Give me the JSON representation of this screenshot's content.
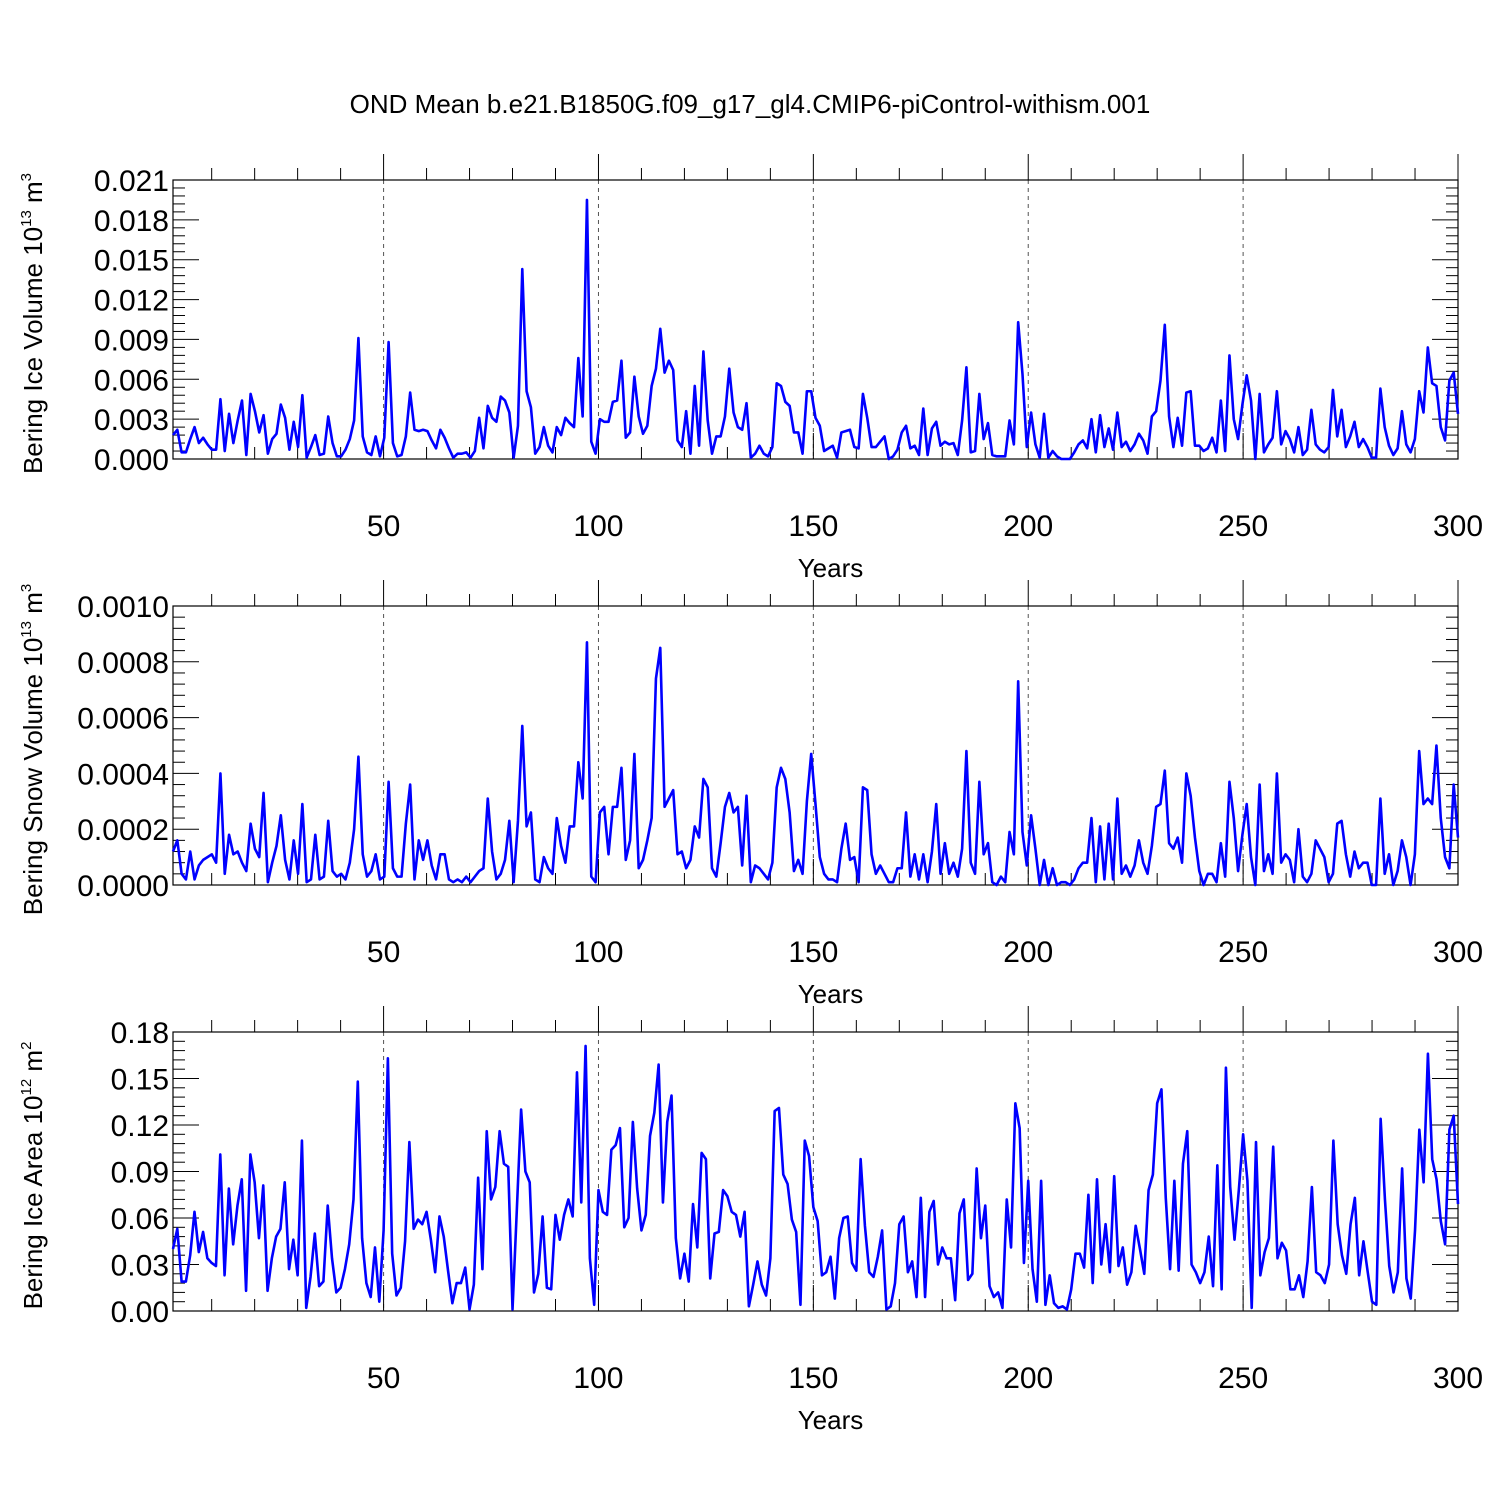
{
  "title": "OND Mean b.e21.B1850G.f09_g17_gl4.CMIP6-piControl-withism.001",
  "series_color": "#0000ff",
  "chart_data": [
    {
      "type": "line",
      "ylabel": {
        "text": "Bering Ice Volume 10",
        "sup": "13",
        "unit": " m",
        "unit_sup": "3"
      },
      "xlabel": "Years",
      "xlim": [
        1,
        300
      ],
      "ylim": [
        0,
        0.021
      ],
      "xticks": [
        50,
        100,
        150,
        200,
        250,
        300
      ],
      "xtick_labels": [
        "50",
        "100",
        "150",
        "200",
        "250",
        "300"
      ],
      "yticks": [
        0.0,
        0.003,
        0.006,
        0.009,
        0.012,
        0.015,
        0.018,
        0.021
      ],
      "ytick_labels": [
        "0.000",
        "0.003",
        "0.006",
        "0.009",
        "0.012",
        "0.015",
        "0.018",
        "0.021"
      ],
      "values": [
        0.0018,
        0.0022,
        0.0005,
        0.0005,
        0.0015,
        0.0024,
        0.0012,
        0.0016,
        0.0011,
        0.0007,
        0.0007,
        0.0045,
        0.0006,
        0.0034,
        0.0012,
        0.0029,
        0.0044,
        0.0003,
        0.0049,
        0.0036,
        0.002,
        0.0033,
        0.0004,
        0.0015,
        0.0019,
        0.0041,
        0.0031,
        0.0007,
        0.0028,
        0.0009,
        0.0048,
        0.0001,
        0.0009,
        0.0018,
        0.0003,
        0.0004,
        0.0032,
        0.0012,
        0.0002,
        0.0002,
        0.0007,
        0.0015,
        0.0029,
        0.0091,
        0.0017,
        0.0005,
        0.0003,
        0.0017,
        0.0002,
        0.0016,
        0.0088,
        0.0012,
        0.0002,
        0.0003,
        0.0017,
        0.005,
        0.0022,
        0.0021,
        0.0022,
        0.0021,
        0.0014,
        0.0008,
        0.0022,
        0.0016,
        0.0008,
        0.0001,
        0.0004,
        0.0004,
        0.0005,
        0.0001,
        0.0006,
        0.0031,
        0.0008,
        0.004,
        0.0031,
        0.0028,
        0.0047,
        0.0044,
        0.0035,
        0.0001,
        0.0025,
        0.0143,
        0.0051,
        0.0039,
        0.0004,
        0.0009,
        0.0024,
        0.001,
        0.0005,
        0.0024,
        0.0018,
        0.0031,
        0.0027,
        0.0024,
        0.0076,
        0.0032,
        0.0195,
        0.0013,
        0.0004,
        0.003,
        0.0028,
        0.0028,
        0.0043,
        0.0044,
        0.0074,
        0.0016,
        0.002,
        0.0062,
        0.0032,
        0.0019,
        0.0025,
        0.0055,
        0.0068,
        0.0098,
        0.0065,
        0.0074,
        0.0067,
        0.0014,
        0.0009,
        0.0036,
        0.0004,
        0.0055,
        0.001,
        0.0081,
        0.0029,
        0.0004,
        0.0017,
        0.0017,
        0.0032,
        0.0068,
        0.0035,
        0.0024,
        0.0022,
        0.0042,
        0.0001,
        0.0004,
        0.001,
        0.0004,
        0.0002,
        0.0009,
        0.0057,
        0.0055,
        0.0043,
        0.004,
        0.002,
        0.002,
        0.0004,
        0.0051,
        0.0051,
        0.0031,
        0.0025,
        0.0006,
        0.0008,
        0.001,
        0.0001,
        0.002,
        0.0021,
        0.0022,
        0.0009,
        0.0008,
        0.0049,
        0.0031,
        0.0009,
        0.0009,
        0.0013,
        0.0017,
        0.0,
        0.0002,
        0.0007,
        0.002,
        0.0025,
        0.0008,
        0.001,
        0.0003,
        0.0038,
        0.0003,
        0.0023,
        0.0028,
        0.001,
        0.0013,
        0.0011,
        0.0012,
        0.0003,
        0.0029,
        0.0069,
        0.0005,
        0.0006,
        0.0049,
        0.0015,
        0.0027,
        0.0003,
        0.0002,
        0.0002,
        0.0002,
        0.0029,
        0.0011,
        0.0103,
        0.0064,
        0.0009,
        0.0035,
        0.0011,
        0.0001,
        0.0034,
        0.0001,
        0.0006,
        0.0002,
        0.0,
        0.0,
        0.0,
        0.0005,
        0.0011,
        0.0014,
        0.0008,
        0.003,
        0.0005,
        0.0033,
        0.0009,
        0.0023,
        0.0007,
        0.0035,
        0.0009,
        0.0013,
        0.0006,
        0.0011,
        0.0019,
        0.0014,
        0.0004,
        0.0032,
        0.0036,
        0.0059,
        0.0101,
        0.0032,
        0.0009,
        0.0031,
        0.001,
        0.005,
        0.0051,
        0.001,
        0.001,
        0.0006,
        0.0008,
        0.0016,
        0.0005,
        0.0044,
        0.0006,
        0.0078,
        0.003,
        0.0015,
        0.0041,
        0.0063,
        0.0044,
        0.0,
        0.0049,
        0.0005,
        0.0011,
        0.0016,
        0.0051,
        0.0011,
        0.0021,
        0.0015,
        0.0005,
        0.0024,
        0.0003,
        0.0007,
        0.0037,
        0.0011,
        0.0007,
        0.0005,
        0.0009,
        0.0052,
        0.0017,
        0.0037,
        0.0009,
        0.0017,
        0.0028,
        0.0009,
        0.0015,
        0.0009,
        0.0001,
        0.0001,
        0.0053,
        0.0024,
        0.001,
        0.0003,
        0.0008,
        0.0036,
        0.0011,
        0.0005,
        0.0015,
        0.0051,
        0.0035,
        0.0084,
        0.0057,
        0.0055,
        0.0024,
        0.0014,
        0.0059,
        0.0065,
        0.0034
      ]
    },
    {
      "type": "line",
      "ylabel": {
        "text": "Bering Snow Volume 10",
        "sup": "13",
        "unit": " m",
        "unit_sup": "3"
      },
      "xlabel": "Years",
      "xlim": [
        1,
        300
      ],
      "ylim": [
        0,
        0.001
      ],
      "xticks": [
        50,
        100,
        150,
        200,
        250,
        300
      ],
      "xtick_labels": [
        "50",
        "100",
        "150",
        "200",
        "250",
        "300"
      ],
      "yticks": [
        0.0,
        0.0002,
        0.0004,
        0.0006,
        0.0008,
        0.001
      ],
      "ytick_labels": [
        "0.0000",
        "0.0002",
        "0.0004",
        "0.0006",
        "0.0008",
        "0.0010"
      ],
      "values": [
        0.00012,
        0.00016,
        4e-05,
        2e-05,
        0.00012,
        2e-05,
        7e-05,
        9e-05,
        0.0001,
        0.00011,
        8e-05,
        0.0004,
        4e-05,
        0.00018,
        0.00011,
        0.00012,
        8e-05,
        5e-05,
        0.00022,
        0.00013,
        0.0001,
        0.00033,
        1e-05,
        8e-05,
        0.00014,
        0.00025,
        9e-05,
        2e-05,
        0.00016,
        4e-05,
        0.00029,
        1e-05,
        2e-05,
        0.00018,
        2e-05,
        3e-05,
        0.00023,
        5e-05,
        3e-05,
        4e-05,
        2e-05,
        8e-05,
        0.0002,
        0.00046,
        0.00011,
        3e-05,
        5e-05,
        0.00011,
        2e-05,
        3e-05,
        0.00037,
        6e-05,
        3e-05,
        3e-05,
        0.00022,
        0.00036,
        2e-05,
        0.00016,
        9e-05,
        0.00016,
        7e-05,
        2e-05,
        0.00011,
        0.00011,
        2e-05,
        1e-05,
        2e-05,
        1e-05,
        3e-05,
        1e-05,
        3e-05,
        5e-05,
        6e-05,
        0.00031,
        0.00012,
        2e-05,
        4e-05,
        9e-05,
        0.00023,
        1e-05,
        0.00023,
        0.00057,
        0.00021,
        0.00026,
        2e-05,
        1e-05,
        0.0001,
        6e-05,
        4e-05,
        0.00024,
        0.00014,
        8e-05,
        0.00021,
        0.00021,
        0.00044,
        0.00031,
        0.00087,
        3e-05,
        1e-05,
        0.00026,
        0.00028,
        0.00011,
        0.00028,
        0.00028,
        0.00042,
        9e-05,
        0.00016,
        0.00047,
        6e-05,
        9e-05,
        0.00016,
        0.00024,
        0.00074,
        0.00085,
        0.00028,
        0.00031,
        0.00034,
        0.00011,
        0.00012,
        6e-05,
        9e-05,
        0.00021,
        0.00017,
        0.00038,
        0.00035,
        6e-05,
        3e-05,
        0.00015,
        0.00028,
        0.00033,
        0.00026,
        0.00028,
        7e-05,
        0.00032,
        1e-05,
        7e-05,
        6e-05,
        4e-05,
        2e-05,
        8e-05,
        0.00035,
        0.00042,
        0.00038,
        0.00026,
        5e-05,
        9e-05,
        4e-05,
        0.0003,
        0.00047,
        0.00029,
        0.0001,
        4e-05,
        2e-05,
        2e-05,
        1e-05,
        0.00013,
        0.00022,
        9e-05,
        0.0001,
        1e-05,
        0.00035,
        0.00034,
        0.00011,
        4e-05,
        7e-05,
        4e-05,
        1e-05,
        1e-05,
        6e-05,
        6e-05,
        0.00026,
        3e-05,
        0.00011,
        2e-05,
        0.00011,
        1e-05,
        0.00012,
        0.00029,
        4e-05,
        0.00015,
        4e-05,
        8e-05,
        3e-05,
        0.00013,
        0.00048,
        8e-05,
        4e-05,
        0.00037,
        0.00011,
        0.00015,
        1e-05,
        0.0,
        3e-05,
        1e-05,
        0.00019,
        0.00011,
        0.00073,
        0.00019,
        7e-05,
        0.00025,
        0.00013,
        0.0,
        9e-05,
        0.0,
        6e-05,
        0.0,
        1e-05,
        1e-05,
        0.0,
        2e-05,
        6e-05,
        8e-05,
        8e-05,
        0.00024,
        1e-05,
        0.00021,
        2e-05,
        0.00022,
        2e-05,
        0.00031,
        4e-05,
        7e-05,
        3e-05,
        7e-05,
        0.00016,
        8e-05,
        4e-05,
        0.00014,
        0.00028,
        0.00029,
        0.00041,
        0.00015,
        0.00013,
        0.00017,
        8e-05,
        0.0004,
        0.00032,
        0.00017,
        5e-05,
        0.0,
        4e-05,
        4e-05,
        1e-05,
        0.00015,
        3e-05,
        0.00037,
        0.00024,
        5e-05,
        0.00018,
        0.00029,
        0.0001,
        0.0,
        0.00036,
        5e-05,
        0.00011,
        4e-05,
        0.0004,
        8e-05,
        0.00011,
        9e-05,
        1e-05,
        0.0002,
        3e-05,
        1e-05,
        4e-05,
        0.00016,
        0.00013,
        0.0001,
        1e-05,
        4e-05,
        0.00022,
        0.00023,
        0.00011,
        3e-05,
        0.00012,
        6e-05,
        8e-05,
        8e-05,
        0.0,
        0.0,
        0.00031,
        4e-05,
        0.00011,
        0.0,
        5e-05,
        0.00016,
        0.0001,
        0.0,
        0.00011,
        0.00048,
        0.00029,
        0.00031,
        0.00029,
        0.0005,
        0.00024,
        0.0001,
        6e-05,
        0.00036,
        0.00017
      ]
    },
    {
      "type": "line",
      "ylabel": {
        "text": "Bering Ice Area 10",
        "sup": "12",
        "unit": " m",
        "unit_sup": "2"
      },
      "xlabel": "Years",
      "xlim": [
        1,
        300
      ],
      "ylim": [
        0,
        0.18
      ],
      "xticks": [
        50,
        100,
        150,
        200,
        250,
        300
      ],
      "xtick_labels": [
        "50",
        "100",
        "150",
        "200",
        "250",
        "300"
      ],
      "yticks": [
        0.0,
        0.03,
        0.06,
        0.09,
        0.12,
        0.15,
        0.18
      ],
      "ytick_labels": [
        "0.00",
        "0.03",
        "0.06",
        "0.09",
        "0.12",
        "0.15",
        "0.18"
      ],
      "values": [
        0.04,
        0.053,
        0.019,
        0.019,
        0.036,
        0.064,
        0.038,
        0.051,
        0.034,
        0.031,
        0.029,
        0.101,
        0.023,
        0.079,
        0.043,
        0.068,
        0.085,
        0.013,
        0.101,
        0.083,
        0.047,
        0.081,
        0.013,
        0.034,
        0.048,
        0.053,
        0.083,
        0.027,
        0.046,
        0.023,
        0.11,
        0.002,
        0.022,
        0.05,
        0.016,
        0.019,
        0.068,
        0.034,
        0.012,
        0.015,
        0.027,
        0.043,
        0.072,
        0.148,
        0.047,
        0.018,
        0.009,
        0.041,
        0.006,
        0.052,
        0.163,
        0.037,
        0.01,
        0.015,
        0.045,
        0.109,
        0.053,
        0.059,
        0.056,
        0.064,
        0.046,
        0.025,
        0.061,
        0.048,
        0.026,
        0.005,
        0.018,
        0.018,
        0.028,
        0.001,
        0.017,
        0.086,
        0.027,
        0.116,
        0.072,
        0.08,
        0.116,
        0.095,
        0.093,
        0.001,
        0.065,
        0.13,
        0.09,
        0.083,
        0.012,
        0.024,
        0.061,
        0.015,
        0.014,
        0.062,
        0.046,
        0.062,
        0.072,
        0.061,
        0.154,
        0.07,
        0.171,
        0.034,
        0.004,
        0.078,
        0.064,
        0.062,
        0.104,
        0.107,
        0.118,
        0.054,
        0.06,
        0.122,
        0.079,
        0.052,
        0.062,
        0.113,
        0.128,
        0.159,
        0.07,
        0.122,
        0.139,
        0.047,
        0.021,
        0.037,
        0.019,
        0.069,
        0.041,
        0.102,
        0.098,
        0.021,
        0.05,
        0.051,
        0.078,
        0.074,
        0.064,
        0.062,
        0.048,
        0.064,
        0.003,
        0.017,
        0.032,
        0.017,
        0.01,
        0.034,
        0.129,
        0.131,
        0.088,
        0.082,
        0.059,
        0.051,
        0.004,
        0.11,
        0.1,
        0.067,
        0.058,
        0.023,
        0.025,
        0.035,
        0.008,
        0.047,
        0.06,
        0.061,
        0.031,
        0.026,
        0.098,
        0.055,
        0.025,
        0.022,
        0.035,
        0.052,
        0.001,
        0.003,
        0.018,
        0.056,
        0.061,
        0.025,
        0.032,
        0.009,
        0.073,
        0.009,
        0.064,
        0.071,
        0.03,
        0.041,
        0.034,
        0.034,
        0.007,
        0.063,
        0.072,
        0.02,
        0.024,
        0.092,
        0.047,
        0.068,
        0.016,
        0.009,
        0.012,
        0.002,
        0.072,
        0.041,
        0.134,
        0.118,
        0.031,
        0.084,
        0.027,
        0.006,
        0.084,
        0.004,
        0.023,
        0.005,
        0.002,
        0.003,
        0.001,
        0.014,
        0.037,
        0.037,
        0.028,
        0.075,
        0.018,
        0.085,
        0.03,
        0.056,
        0.025,
        0.087,
        0.029,
        0.041,
        0.017,
        0.025,
        0.055,
        0.04,
        0.024,
        0.078,
        0.088,
        0.134,
        0.143,
        0.073,
        0.027,
        0.084,
        0.026,
        0.095,
        0.116,
        0.03,
        0.025,
        0.018,
        0.025,
        0.048,
        0.016,
        0.094,
        0.014,
        0.157,
        0.08,
        0.046,
        0.078,
        0.114,
        0.084,
        0.002,
        0.109,
        0.023,
        0.038,
        0.047,
        0.106,
        0.034,
        0.044,
        0.039,
        0.014,
        0.014,
        0.023,
        0.009,
        0.032,
        0.08,
        0.025,
        0.023,
        0.018,
        0.03,
        0.11,
        0.056,
        0.036,
        0.024,
        0.056,
        0.073,
        0.023,
        0.045,
        0.025,
        0.006,
        0.004,
        0.124,
        0.072,
        0.029,
        0.012,
        0.025,
        0.092,
        0.021,
        0.008,
        0.052,
        0.117,
        0.083,
        0.166,
        0.098,
        0.085,
        0.058,
        0.043,
        0.117,
        0.126,
        0.069
      ]
    }
  ]
}
